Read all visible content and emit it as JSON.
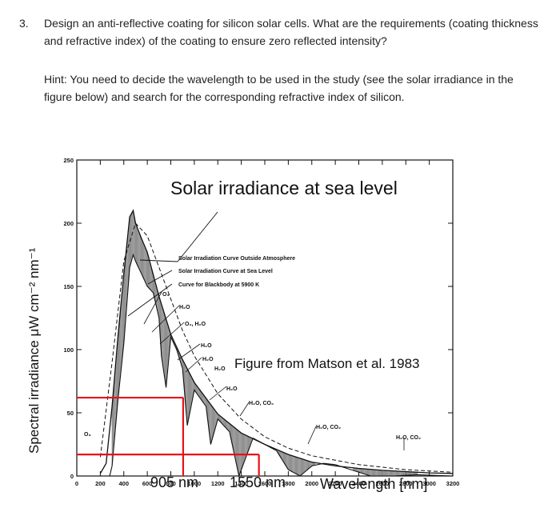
{
  "question": {
    "number": "3.",
    "text": "Design an anti-reflective coating for silicon solar cells. What are the requirements (coating thickness and refractive index) of the coating to ensure zero reflected intensity?"
  },
  "hint": {
    "text": "Hint: You need to decide the wavelength to be used in the study (see the solar irradiance in the figure below) and search for the corresponding refractive index of silicon."
  },
  "figure": {
    "title": "Solar irradiance at sea level",
    "ylabel": "Spectral irradiance μW cm⁻² nm⁻¹",
    "xlabel": "Wavelength [nm]",
    "source": "Figure from Matson et al. 1983",
    "legend": [
      "Solar Irradiation Curve Outside Atmosphere",
      "Solar Irradiation Curve at Sea Level",
      "Curve for Blackbody at 5900 K"
    ],
    "marker_labels": [
      "905 nm",
      "1550 nm"
    ],
    "absorption_labels": [
      "O₃",
      "H₂O",
      "O₂, H₂O",
      "H₂O",
      "H₂O",
      "H₂O",
      "H₂O",
      "H₂O, CO₂",
      "H₂O, CO₂",
      "H₂O, CO₂",
      "O₃"
    ],
    "highlight_color": "#e8101a"
  },
  "chart_data": {
    "type": "line",
    "xlim": [
      0,
      3200
    ],
    "ylim": [
      0,
      250
    ],
    "x_ticks": [
      "0",
      "200",
      "400",
      "600",
      "800",
      "1000",
      "1200",
      "1400",
      "1600",
      "1800",
      "2000",
      "2200",
      "2400",
      "2600",
      "2800",
      "3000",
      "3200"
    ],
    "y_ticks": [
      "0",
      "50",
      "100",
      "150",
      "200",
      "250"
    ],
    "series": [
      {
        "name": "Solar Irradiation Curve Outside Atmosphere",
        "x": [
          200,
          250,
          300,
          350,
          400,
          450,
          480,
          500,
          550,
          600,
          700,
          800,
          900,
          1000,
          1200,
          1400,
          1600,
          1800,
          2000,
          2200,
          2400,
          2600,
          2800,
          3000,
          3200
        ],
        "y": [
          2,
          10,
          55,
          110,
          160,
          205,
          210,
          200,
          188,
          177,
          142,
          112,
          92,
          74,
          49,
          34,
          25,
          17,
          11,
          8,
          6,
          4.5,
          3.5,
          2.5,
          2
        ]
      },
      {
        "name": "Solar Irradiation Curve at Sea Level",
        "x": [
          280,
          300,
          350,
          400,
          450,
          480,
          500,
          550,
          600,
          650,
          700,
          720,
          760,
          800,
          850,
          900,
          940,
          1000,
          1100,
          1140,
          1200,
          1300,
          1380,
          1500,
          1600,
          1700,
          1800,
          1900,
          2000,
          2100,
          2200,
          2300,
          2500,
          2700,
          2900,
          3200
        ],
        "y": [
          0,
          8,
          60,
          105,
          165,
          175,
          170,
          160,
          150,
          145,
          125,
          95,
          70,
          110,
          100,
          85,
          40,
          68,
          55,
          25,
          45,
          35,
          0,
          30,
          25,
          20,
          5,
          0,
          8,
          10,
          9,
          6,
          0,
          0,
          1,
          0
        ]
      },
      {
        "name": "Curve for Blackbody at 5900 K",
        "x": [
          200,
          300,
          400,
          500,
          600,
          700,
          800,
          900,
          1000,
          1200,
          1400,
          1600,
          1800,
          2000,
          2400,
          2800,
          3200
        ],
        "y": [
          15,
          90,
          170,
          200,
          190,
          165,
          140,
          115,
          95,
          65,
          45,
          31,
          22,
          16,
          9,
          5,
          3
        ]
      }
    ],
    "markers": [
      {
        "x": 905,
        "y": 62
      },
      {
        "x": 1550,
        "y": 17
      }
    ]
  }
}
